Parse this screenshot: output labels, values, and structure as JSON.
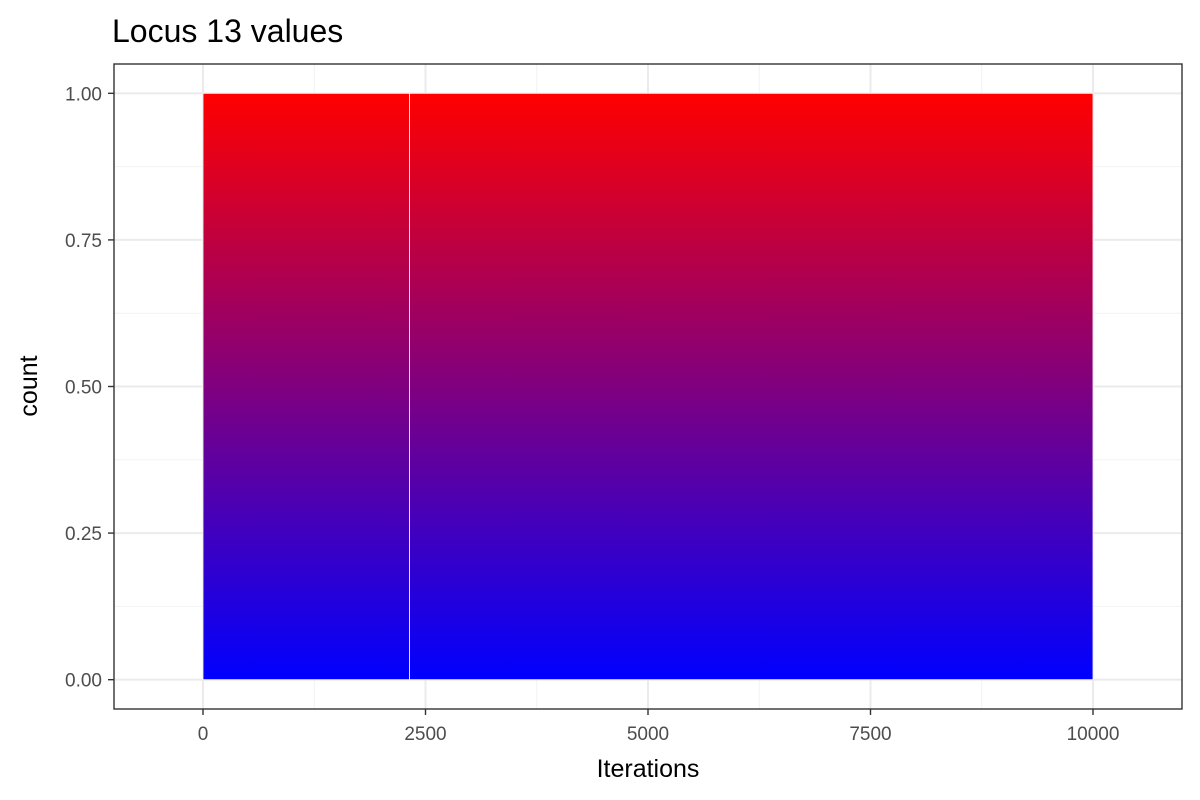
{
  "chart_data": {
    "type": "bar",
    "title": "Locus 13 values",
    "xlabel": "Iterations",
    "ylabel": "count",
    "x_ticks": [
      "0",
      "2500",
      "5000",
      "7500",
      "10000"
    ],
    "y_ticks": [
      "0.00",
      "0.25",
      "0.50",
      "0.75",
      "1.00"
    ],
    "xlim": [
      -1000,
      11000
    ],
    "ylim": [
      -0.05,
      1.05
    ],
    "grid": true,
    "bars": [
      {
        "x_start": 0,
        "x_end": 2320,
        "count": 1
      },
      {
        "x_start": 2320,
        "x_end": 10000,
        "count": 1
      }
    ],
    "fill_gradient": {
      "low": "#0000ff",
      "high": "#ff0000"
    },
    "bar_outline": "#ffffff"
  }
}
